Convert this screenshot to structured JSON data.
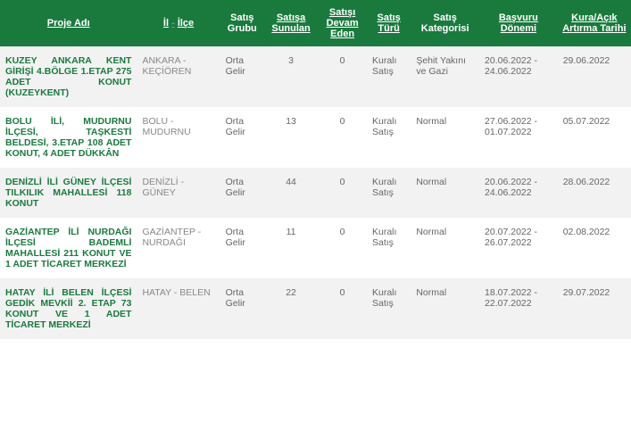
{
  "headers": {
    "proje": "Proje Adı",
    "il": "İl",
    "ilce": "İlçe",
    "grup": "Satış Grubu",
    "sunulan": "Satışa Sunulan",
    "devam": "Satışı Devam Eden",
    "tur": "Satış Türü",
    "kategori": "Satış Kategorisi",
    "basvuru": "Başvuru Dönemi",
    "kura": "Kura/Açık Artırma Tarihi"
  },
  "rows": [
    {
      "proje": "KUZEY ANKARA KENT GİRİŞİ 4.BÖLGE 1.ETAP 275 ADET KONUT (KUZEYKENT)",
      "il": "ANKARA",
      "ilce": "KEÇİÖREN",
      "grup": "Orta Gelir",
      "sunulan": "3",
      "devam": "0",
      "tur": "Kuralı Satış",
      "kategori": "Şehit Yakını ve Gazi",
      "basvuru": "20.06.2022 - 24.06.2022",
      "kura": "29.06.2022"
    },
    {
      "proje": "BOLU İLİ, MUDURNU İLÇESİ, TAŞKESTİ BELDESİ, 3.ETAP 108 ADET KONUT, 4 ADET DÜKKÂN",
      "il": "BOLU",
      "ilce": "MUDURNU",
      "grup": "Orta Gelir",
      "sunulan": "13",
      "devam": "0",
      "tur": "Kuralı Satış",
      "kategori": "Normal",
      "basvuru": "27.06.2022 - 01.07.2022",
      "kura": "05.07.2022"
    },
    {
      "proje": "DENİZLİ İLİ GÜNEY İLÇESİ TILKILIK MAHALLESİ 118 KONUT",
      "il": "DENİZLİ",
      "ilce": "GÜNEY",
      "grup": "Orta Gelir",
      "sunulan": "44",
      "devam": "0",
      "tur": "Kuralı Satış",
      "kategori": "Normal",
      "basvuru": "20.06.2022 - 24.06.2022",
      "kura": "28.06.2022"
    },
    {
      "proje": "GAZİANTEP İLİ NURDAĞI İLÇESİ BADEMLİ MAHALLESİ 211 KONUT VE 1 ADET TİCARET MERKEZİ",
      "il": "GAZİANTEP",
      "ilce": "NURDAĞI",
      "grup": "Orta Gelir",
      "sunulan": "11",
      "devam": "0",
      "tur": "Kuralı Satış",
      "kategori": "Normal",
      "basvuru": "20.07.2022 - 26.07.2022",
      "kura": "02.08.2022"
    },
    {
      "proje": "HATAY İLİ BELEN İLÇESİ GEDİK MEVKİİ 2. ETAP 73 KONUT VE 1 ADET TİCARET MERKEZİ",
      "il": "HATAY",
      "ilce": "BELEN",
      "grup": "Orta Gelir",
      "sunulan": "22",
      "devam": "0",
      "tur": "Kuralı Satış",
      "kategori": "Normal",
      "basvuru": "18.07.2022 - 22.07.2022",
      "kura": "29.07.2022"
    }
  ]
}
